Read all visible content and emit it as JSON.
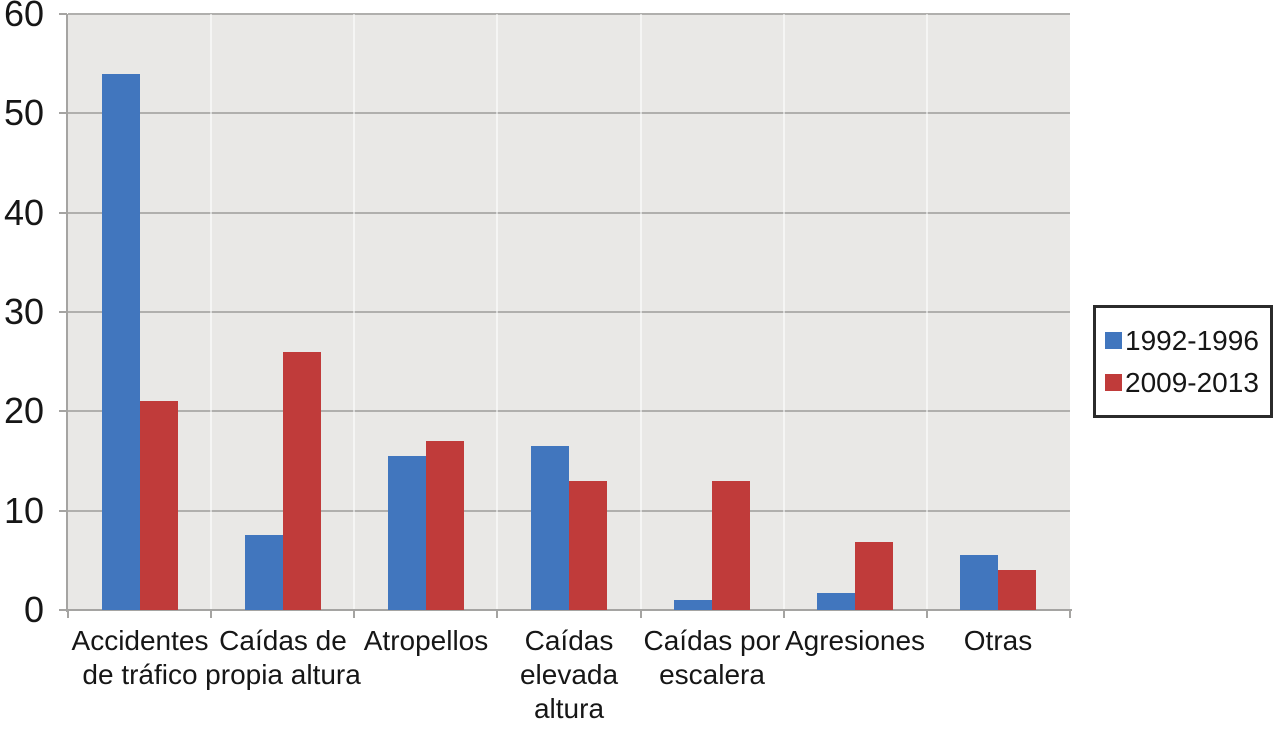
{
  "chart_data": {
    "type": "bar",
    "categories": [
      "Accidentes\nde tráfico",
      "Caídas de\npropia altura",
      "Atropellos",
      "Caídas\nelevada\naltura",
      "Caídas por\nescalera",
      "Agresiones",
      "Otras"
    ],
    "series": [
      {
        "name": "1992-1996",
        "color": "#4176be",
        "values": [
          54,
          7.5,
          15.5,
          16.5,
          1,
          1.7,
          5.5
        ]
      },
      {
        "name": "2009-2013",
        "color": "#c03b3a",
        "values": [
          21,
          26,
          17,
          13,
          13,
          6.8,
          4
        ]
      }
    ],
    "ylim": [
      0,
      60
    ],
    "yticks": [
      0,
      10,
      20,
      30,
      40,
      50,
      60
    ],
    "xlabel": "",
    "ylabel": "",
    "grid": true,
    "legend_position": "right",
    "plot_background": "#e9e8e6",
    "gridline_color": "#b0afad",
    "axis_color": "#a5a4a2",
    "legend_border_color": "#2b2b2b"
  }
}
